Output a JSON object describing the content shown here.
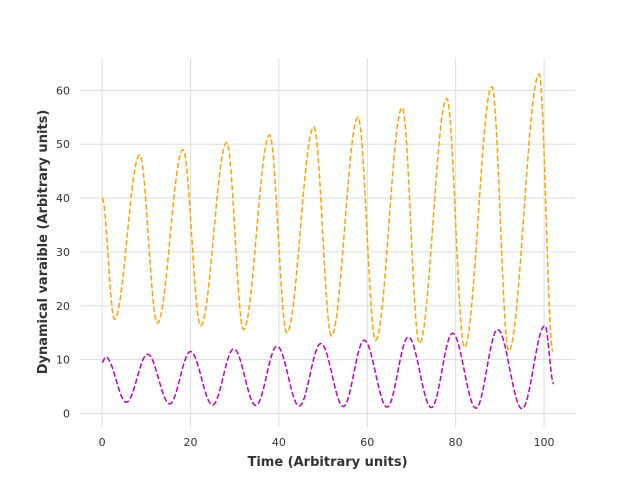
{
  "chart_data": {
    "type": "line",
    "title": "",
    "xlabel": "Time (Arbitrary units)",
    "ylabel": "Dynamical varaible (Arbitrary units)",
    "xlim": [
      -5,
      107
    ],
    "ylim": [
      -2.5,
      66
    ],
    "xticks": [
      0,
      20,
      40,
      60,
      80,
      100
    ],
    "yticks": [
      0,
      10,
      20,
      30,
      40,
      50,
      60
    ],
    "grid": true,
    "legend": "none",
    "series": [
      {
        "color": "#ffa500",
        "style": "dashed",
        "start": 40,
        "peaks": [
          [
            8.5,
            48
          ],
          [
            18.3,
            49
          ],
          [
            28.2,
            50.3
          ],
          [
            37.9,
            51.7
          ],
          [
            47.9,
            53.2
          ],
          [
            57.9,
            55
          ],
          [
            67.9,
            56.8
          ],
          [
            78,
            58.5
          ],
          [
            88.2,
            60.7
          ],
          [
            98.9,
            63
          ]
        ],
        "troughs": [
          [
            2.8,
            17.5
          ],
          [
            12.5,
            16.8
          ],
          [
            22.3,
            16.3
          ],
          [
            32,
            15.6
          ],
          [
            41.8,
            15
          ],
          [
            51.9,
            14.4
          ],
          [
            61.9,
            13.6
          ],
          [
            71.8,
            13
          ],
          [
            82,
            12.3
          ],
          [
            92,
            11.6
          ]
        ],
        "end": [
          102,
          11.5
        ]
      },
      {
        "color": "#bf00bf",
        "style": "dashed",
        "start": 9.5,
        "peaks": [
          [
            0.8,
            10.5
          ],
          [
            10.3,
            11
          ],
          [
            20,
            11.5
          ],
          [
            29.8,
            12
          ],
          [
            39.6,
            12.5
          ],
          [
            49.5,
            13
          ],
          [
            59.3,
            13.6
          ],
          [
            69.3,
            14.2
          ],
          [
            79.3,
            14.9
          ],
          [
            89.5,
            15.6
          ],
          [
            100.2,
            16.3
          ]
        ],
        "troughs": [
          [
            5.5,
            2.1
          ],
          [
            15.3,
            1.8
          ],
          [
            25,
            1.6
          ],
          [
            34.8,
            1.5
          ],
          [
            44.6,
            1.4
          ],
          [
            54.6,
            1.3
          ],
          [
            64.5,
            1.2
          ],
          [
            74.5,
            1.1
          ],
          [
            84.6,
            1.0
          ],
          [
            95,
            0.9
          ]
        ],
        "end": [
          102.2,
          5.5
        ]
      }
    ]
  }
}
